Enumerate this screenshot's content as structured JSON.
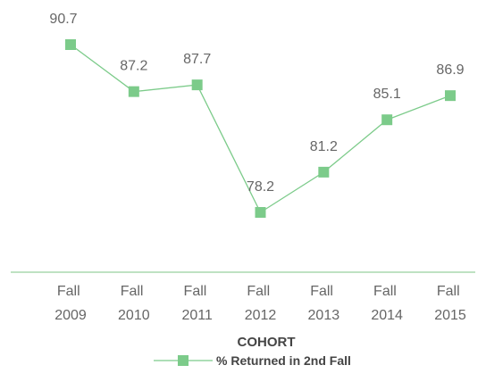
{
  "chart_data": {
    "type": "line",
    "categories": [
      "Fall 2009",
      "Fall 2010",
      "Fall 2011",
      "Fall 2012",
      "Fall 2013",
      "Fall 2014",
      "Fall 2015"
    ],
    "series": [
      {
        "name": "% Returned in 2nd Fall",
        "color": "#7ccb8a",
        "values": [
          90.7,
          87.2,
          87.7,
          78.2,
          81.2,
          85.1,
          86.9
        ]
      }
    ],
    "x_label": "COHORT"
  }
}
